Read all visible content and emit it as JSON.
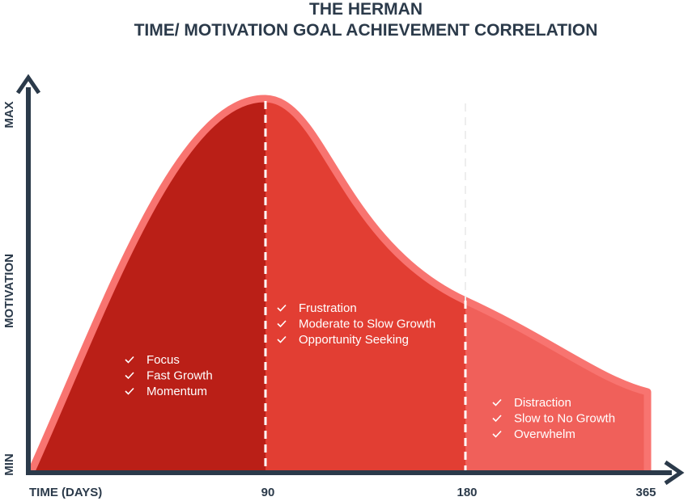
{
  "title": {
    "line1": "THE HERMAN",
    "line2": "TIME/ MOTIVATION GOAL ACHIEVEMENT CORRELATION"
  },
  "y_axis": {
    "max": "MAX",
    "title": "MOTIVATION",
    "min": "MIN"
  },
  "x_axis": {
    "title": "TIME (DAYS)",
    "labels": [
      "90",
      "180",
      "365"
    ]
  },
  "phases": [
    {
      "items": [
        "Focus",
        "Fast Growth",
        "Momentum"
      ]
    },
    {
      "items": [
        "Frustration",
        "Moderate to Slow Growth",
        "Opportunity Seeking"
      ]
    },
    {
      "items": [
        "Distraction",
        "Slow to No Growth",
        "Overwhelm"
      ]
    }
  ]
}
